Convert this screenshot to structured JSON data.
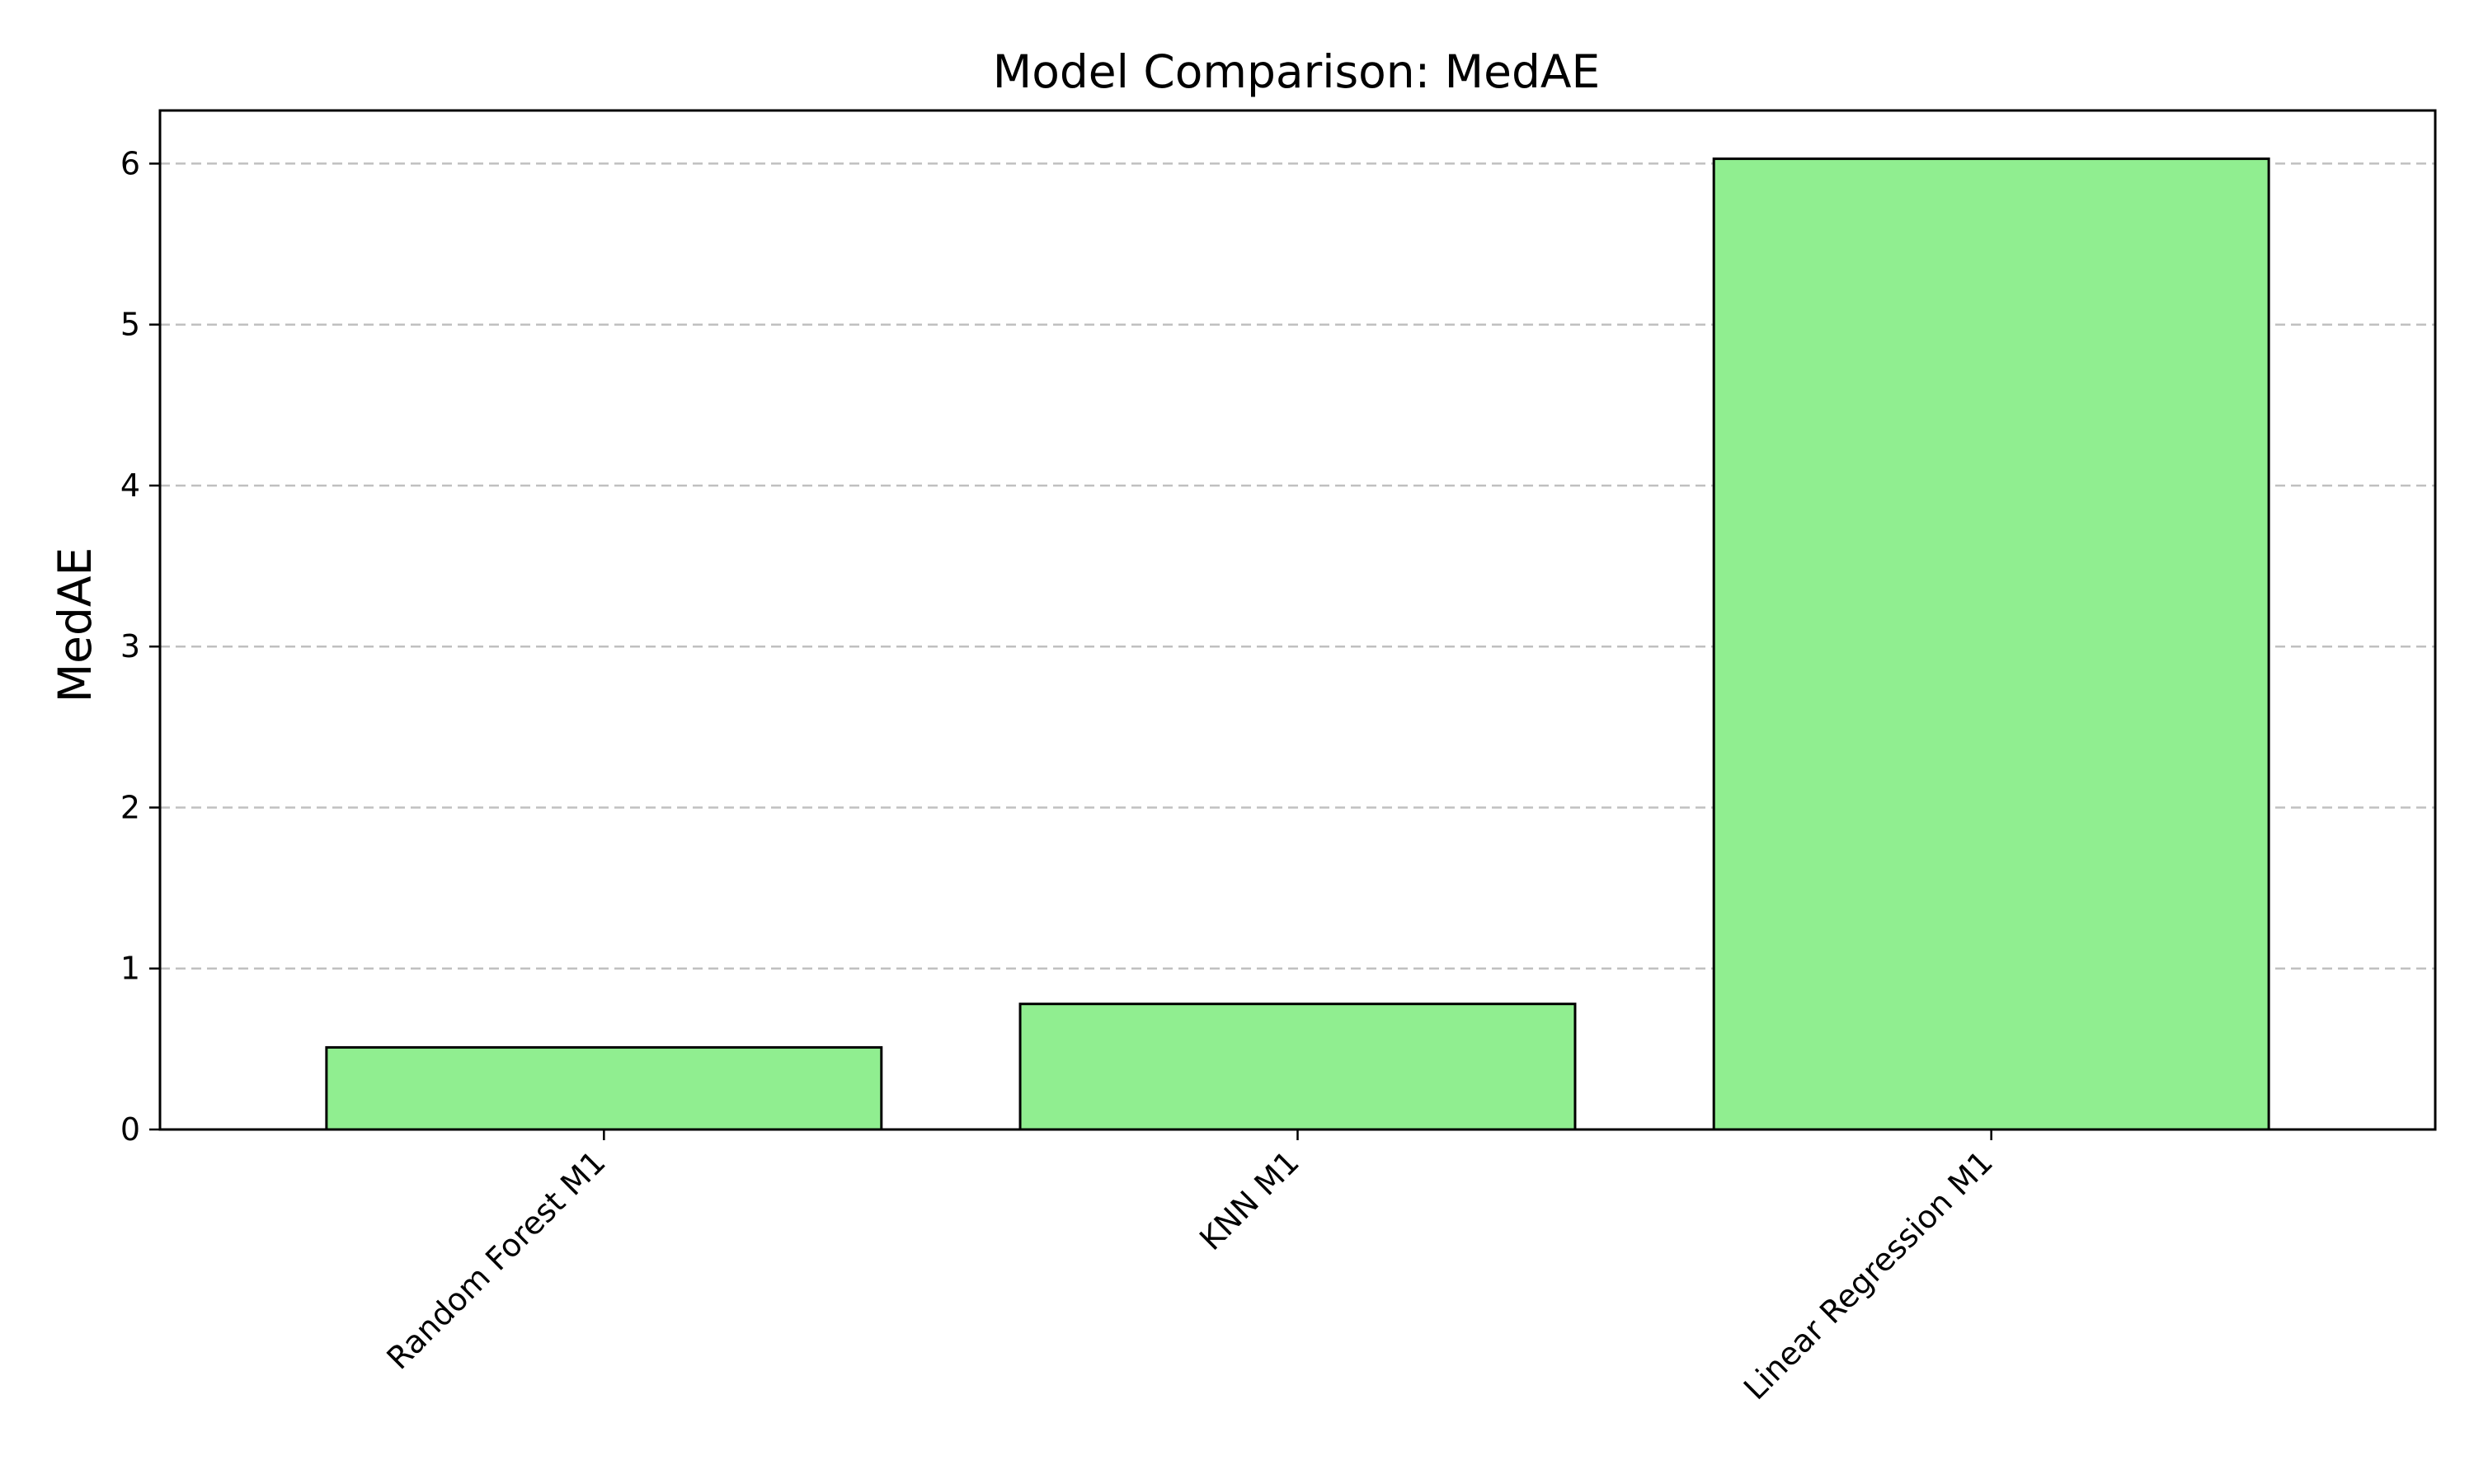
{
  "chart_data": {
    "type": "bar",
    "title": "Model Comparison: MedAE",
    "xlabel": "",
    "ylabel": "MedAE",
    "categories": [
      "Random Forest M1",
      "KNN M1",
      "Linear Regression M1"
    ],
    "values": [
      0.51,
      0.78,
      6.03
    ],
    "ylim": [
      0,
      6.33
    ],
    "yticks": [
      0,
      1,
      2,
      3,
      4,
      5,
      6
    ],
    "grid": "horizontal dashed",
    "legend": "none",
    "bar_color": "#90ee90",
    "bar_edge_color": "#000000"
  }
}
